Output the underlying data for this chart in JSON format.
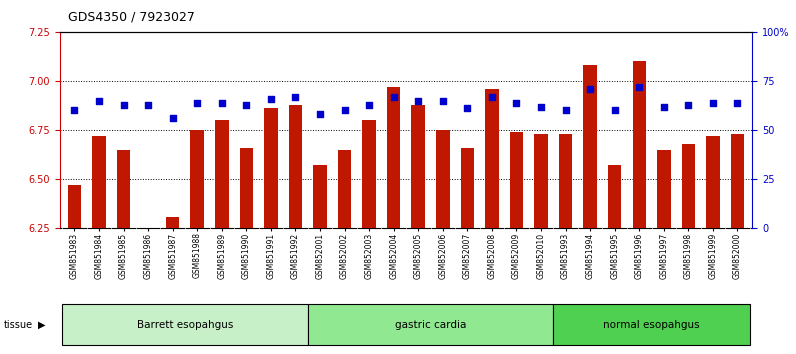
{
  "title": "GDS4350 / 7923027",
  "samples": [
    "GSM851983",
    "GSM851984",
    "GSM851985",
    "GSM851986",
    "GSM851987",
    "GSM851988",
    "GSM851989",
    "GSM851990",
    "GSM851991",
    "GSM851992",
    "GSM852001",
    "GSM852002",
    "GSM852003",
    "GSM852004",
    "GSM852005",
    "GSM852006",
    "GSM852007",
    "GSM852008",
    "GSM852009",
    "GSM852010",
    "GSM851993",
    "GSM851994",
    "GSM851995",
    "GSM851996",
    "GSM851997",
    "GSM851998",
    "GSM851999",
    "GSM852000"
  ],
  "bar_values": [
    6.47,
    6.72,
    6.65,
    6.25,
    6.31,
    6.75,
    6.8,
    6.66,
    6.86,
    6.88,
    6.57,
    6.65,
    6.8,
    6.97,
    6.88,
    6.75,
    6.66,
    6.96,
    6.74,
    6.73,
    6.73,
    7.08,
    6.57,
    7.1,
    6.65,
    6.68,
    6.72,
    6.73
  ],
  "percentile_values": [
    60,
    65,
    63,
    63,
    56,
    64,
    64,
    63,
    66,
    67,
    58,
    60,
    63,
    67,
    65,
    65,
    61,
    67,
    64,
    62,
    60,
    71,
    60,
    72,
    62,
    63,
    64,
    64
  ],
  "groups": [
    {
      "label": "Barrett esopahgus",
      "start": 0,
      "end": 9,
      "color": "#c8f0c8"
    },
    {
      "label": "gastric cardia",
      "start": 10,
      "end": 19,
      "color": "#90e890"
    },
    {
      "label": "normal esopahgus",
      "start": 20,
      "end": 27,
      "color": "#50d050"
    }
  ],
  "ylim_left": [
    6.25,
    7.25
  ],
  "ylim_right": [
    0,
    100
  ],
  "yticks_left": [
    6.25,
    6.5,
    6.75,
    7.0,
    7.25
  ],
  "yticks_right": [
    0,
    25,
    50,
    75,
    100
  ],
  "bar_color": "#c01800",
  "dot_color": "#0000cc",
  "background_color": "#ffffff",
  "tick_label_color_left": "#cc0000",
  "tick_label_color_right": "#0000cc",
  "xtick_bg_color": "#d0d0d0",
  "tissue_label_fontsize": 7.5,
  "bar_width": 0.55
}
